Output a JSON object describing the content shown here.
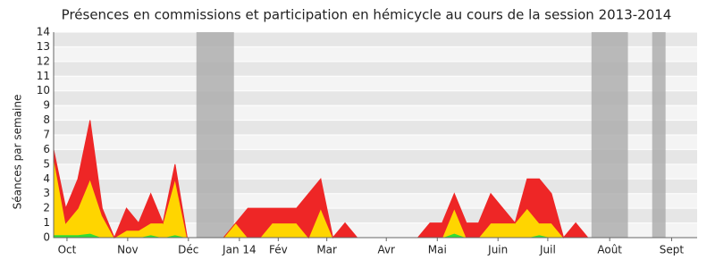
{
  "chart_data": {
    "type": "stacked_area",
    "title": "Présences en commissions et participation en hémicycle au cours de la session 2013-2014",
    "y_label": "Séances par semaine",
    "x": [
      0,
      1,
      2,
      3,
      4,
      5,
      6,
      7,
      8,
      9,
      10,
      11,
      12,
      13,
      14,
      15,
      16,
      17,
      18,
      19,
      20,
      21,
      22,
      23,
      24,
      25,
      26,
      27,
      28,
      29,
      30,
      31,
      32,
      33,
      34,
      35,
      36,
      37,
      38,
      39,
      40,
      41,
      42,
      43,
      44
    ],
    "series": [
      {
        "name": "green",
        "color": "#33dd33",
        "values": [
          0.2,
          0.2,
          0.2,
          0.3,
          0,
          0,
          0,
          0,
          0.2,
          0,
          0.2,
          0,
          0,
          0,
          0,
          0,
          0,
          0,
          0,
          0,
          0,
          0,
          0,
          0,
          0,
          0,
          0,
          0,
          0,
          0,
          0,
          0,
          0,
          0.3,
          0,
          0,
          0,
          0,
          0,
          0,
          0.2,
          0,
          0,
          0,
          0
        ]
      },
      {
        "name": "yellow",
        "color": "#ffd500",
        "values": [
          5.3,
          0.8,
          1.8,
          3.7,
          1.5,
          0,
          0.5,
          0.5,
          0.8,
          1,
          3.8,
          0,
          0,
          0,
          0,
          1,
          0,
          0,
          1,
          1,
          1,
          0,
          2,
          0,
          0,
          0,
          0,
          0,
          0,
          0,
          0,
          0,
          0,
          1.7,
          0,
          0,
          1,
          1,
          1,
          2,
          0.8,
          1,
          0,
          0,
          0
        ]
      },
      {
        "name": "red",
        "color": "#ee2626",
        "values": [
          0.5,
          1,
          2,
          4,
          0.5,
          0,
          1.5,
          0.5,
          2,
          0,
          1,
          0,
          0,
          0,
          0,
          0,
          2,
          2,
          1,
          1,
          1,
          3,
          2,
          0,
          1,
          0,
          0,
          0,
          0,
          0,
          0,
          1,
          1,
          1,
          1,
          1,
          2,
          1,
          0,
          2,
          3,
          2,
          0,
          1,
          0
        ]
      }
    ],
    "xlim": [
      0,
      53
    ],
    "xticks": [
      {
        "value": 1.1,
        "label": "Oct"
      },
      {
        "value": 6.1,
        "label": "Nov"
      },
      {
        "value": 11.1,
        "label": "Déc"
      },
      {
        "value": 15.3,
        "label": "Jan 14"
      },
      {
        "value": 18.5,
        "label": "Fév"
      },
      {
        "value": 22.5,
        "label": "Mar"
      },
      {
        "value": 27.4,
        "label": "Avr"
      },
      {
        "value": 31.6,
        "label": "Mai"
      },
      {
        "value": 36.6,
        "label": "Juin"
      },
      {
        "value": 40.7,
        "label": "Juil"
      },
      {
        "value": 45.8,
        "label": "Août"
      },
      {
        "value": 50.9,
        "label": "Sept"
      }
    ],
    "ylim": [
      0,
      14
    ],
    "yticks": [
      0,
      1,
      2,
      3,
      4,
      5,
      6,
      7,
      8,
      9,
      10,
      11,
      12,
      13,
      14
    ],
    "shaded_ranges": [
      [
        11.76,
        14.85
      ],
      [
        44.3,
        47.3
      ],
      [
        49.3,
        50.4
      ]
    ],
    "grid": true
  }
}
